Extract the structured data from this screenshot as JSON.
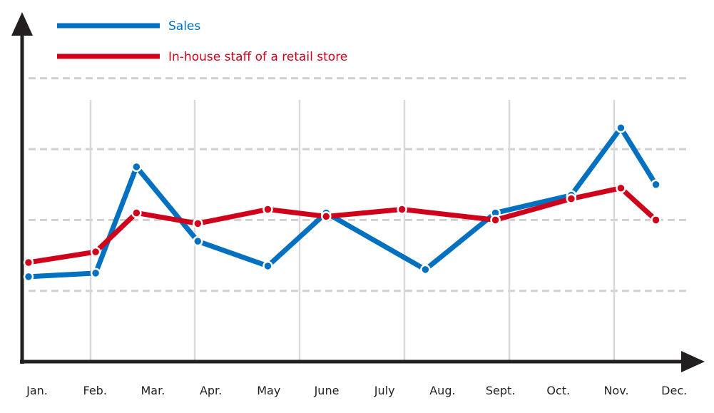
{
  "chart_data": {
    "type": "line",
    "categories": [
      "Jan.",
      "Feb.",
      "Mar.",
      "Apr.",
      "May",
      "June",
      "July",
      "Aug.",
      "Sept.",
      "Oct.",
      "Nov.",
      "Dec."
    ],
    "x_positions": [
      0,
      1.15,
      1.85,
      2.9,
      4.1,
      5.1,
      6.4,
      6.8,
      8.0,
      9.3,
      10.15,
      10.75
    ],
    "series": [
      {
        "name": "Sales",
        "color": "#0070c0",
        "x": [
          0,
          1.15,
          1.85,
          2.9,
          4.1,
          5.1,
          6.8,
          8.0,
          9.3,
          10.15,
          10.75
        ],
        "values": [
          1.2,
          1.25,
          2.75,
          1.7,
          1.35,
          2.1,
          1.3,
          2.1,
          2.35,
          3.3,
          2.5
        ]
      },
      {
        "name": "In-house staff of a retail store",
        "color": "#d0021b",
        "x": [
          0,
          1.15,
          1.85,
          2.9,
          4.1,
          5.1,
          6.4,
          8.0,
          9.3,
          10.15,
          10.75
        ],
        "values": [
          1.4,
          1.55,
          2.1,
          1.95,
          2.15,
          2.05,
          2.15,
          2.0,
          2.3,
          2.45,
          2.0
        ]
      }
    ],
    "ylim": [
      0,
      4.3
    ],
    "xlim": [
      0,
      11
    ],
    "grid": true,
    "grid_values": [
      1,
      2,
      3,
      4
    ],
    "legend_position": "top-left",
    "axis_color": "#231f20"
  }
}
